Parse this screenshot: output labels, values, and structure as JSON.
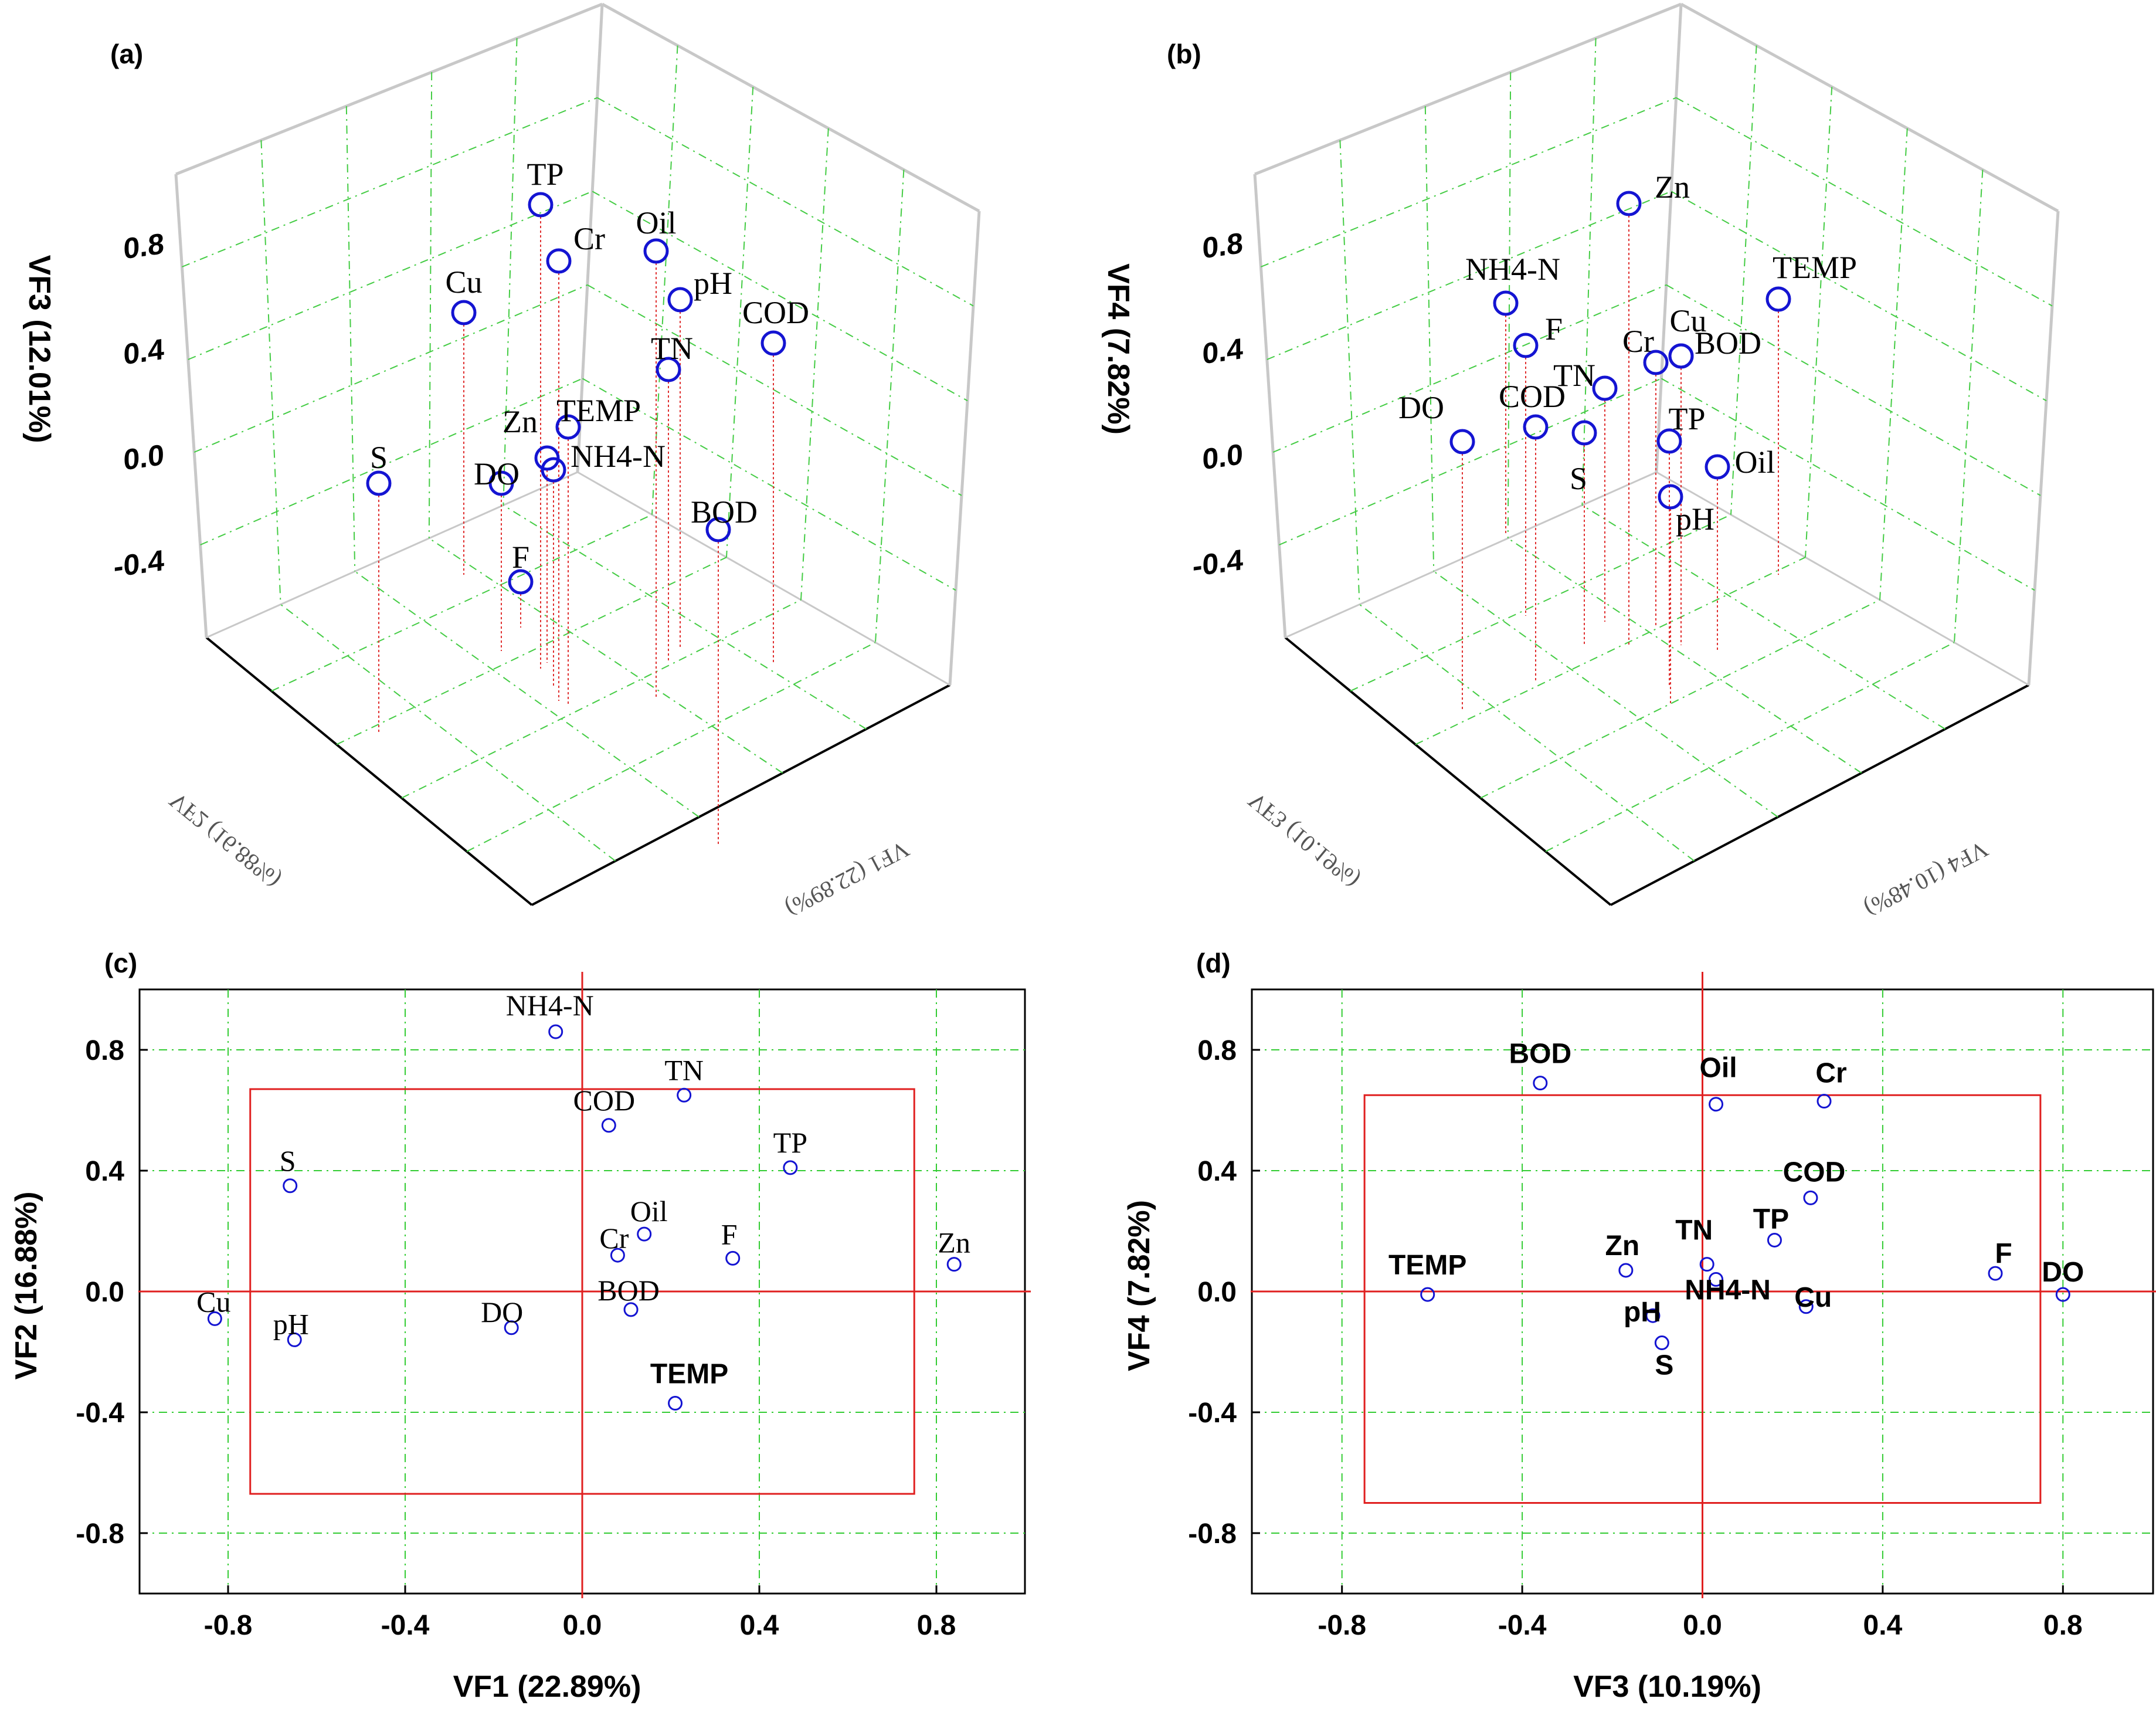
{
  "chart_data": [
    {
      "panel_label": "(a)",
      "type": "scatter3d",
      "z_axis_label": "VF3 (12.01%)",
      "z_ticks": [
        "0.8",
        "0.4",
        "0.0",
        "-0.4"
      ],
      "floor_label_left": "VF2 (16.88%)",
      "floor_label_right": "VF1 (22.89%)",
      "point_color": "#1414d2",
      "stem_color": "#e03030",
      "points": [
        {
          "label": "TP",
          "z": 0.93
        },
        {
          "label": "Cr",
          "z": 0.68
        },
        {
          "label": "Oil",
          "z": 0.75
        },
        {
          "label": "pH",
          "z": 0.56
        },
        {
          "label": "Cu",
          "z": 0.49
        },
        {
          "label": "COD",
          "z": 0.36
        },
        {
          "label": "TN",
          "z": 0.2
        },
        {
          "label": "TEMP",
          "z": 0.01
        },
        {
          "label": "Zn",
          "z": -0.09
        },
        {
          "label": "NH4-N",
          "z": -0.14
        },
        {
          "label": "DO",
          "z": -0.2
        },
        {
          "label": "S",
          "z": -0.19
        },
        {
          "label": "BOD",
          "z": -0.5
        },
        {
          "label": "F",
          "z": -0.76
        }
      ]
    },
    {
      "panel_label": "(b)",
      "type": "scatter3d",
      "z_axis_label": "VF4 (7.82%)",
      "z_ticks": [
        "0.8",
        "0.4",
        "0.0",
        "-0.4"
      ],
      "floor_label_left": "VF3 (10.19%)",
      "floor_label_right": "VF4 (10.48%)",
      "point_color": "#1414d2",
      "stem_color": "#e03030",
      "points": [
        {
          "label": "Zn",
          "z": 0.91
        },
        {
          "label": "NH4-N",
          "z": 0.4
        },
        {
          "label": "TEMP",
          "z": 0.44
        },
        {
          "label": "F",
          "z": 0.21
        },
        {
          "label": "Cu",
          "z": 0.2
        },
        {
          "label": "Cr",
          "z": 0.17
        },
        {
          "label": "BOD",
          "z": 0.2
        },
        {
          "label": "TN",
          "z": 0.0
        },
        {
          "label": "TP",
          "z": -0.22
        },
        {
          "label": "DO",
          "z": -0.2
        },
        {
          "label": "COD",
          "z": -0.15
        },
        {
          "label": "S",
          "z": -0.16
        },
        {
          "label": "Oil",
          "z": -0.3
        },
        {
          "label": "pH",
          "z": -0.41
        }
      ]
    },
    {
      "panel_label": "(c)",
      "type": "scatter",
      "xlabel": "VF1 (22.89%)",
      "ylabel": "VF2 (16.88%)",
      "xlim": [
        -1.0,
        1.0
      ],
      "ylim": [
        -1.0,
        1.0
      ],
      "x_ticks": [
        -0.8,
        -0.4,
        0.0,
        0.4,
        0.8
      ],
      "y_ticks": [
        -0.8,
        -0.4,
        0.0,
        0.4,
        0.8
      ],
      "x_tick_labels": [
        "-0.8",
        "-0.4",
        "0.0",
        "0.4",
        "0.8"
      ],
      "y_tick_labels": [
        "-0.8",
        "-0.4",
        "0.0",
        "0.4",
        "0.8"
      ],
      "grid": true,
      "box": {
        "x": [
          -0.75,
          0.75
        ],
        "y": [
          -0.67,
          0.67
        ]
      },
      "point_color": "#1414d2",
      "line_color": "#e02020",
      "points": [
        {
          "label": "NH4-N",
          "x": -0.06,
          "y": 0.86
        },
        {
          "label": "TN",
          "x": 0.23,
          "y": 0.65
        },
        {
          "label": "COD",
          "x": 0.06,
          "y": 0.55
        },
        {
          "label": "TP",
          "x": 0.47,
          "y": 0.41
        },
        {
          "label": "S",
          "x": -0.66,
          "y": 0.35
        },
        {
          "label": "Oil",
          "x": 0.14,
          "y": 0.19
        },
        {
          "label": "Cr",
          "x": 0.08,
          "y": 0.12
        },
        {
          "label": "F",
          "x": 0.34,
          "y": 0.11
        },
        {
          "label": "Zn",
          "x": 0.84,
          "y": 0.09
        },
        {
          "label": "Cu",
          "x": -0.83,
          "y": -0.09
        },
        {
          "label": "pH",
          "x": -0.65,
          "y": -0.16
        },
        {
          "label": "DO",
          "x": -0.16,
          "y": -0.12
        },
        {
          "label": "BOD",
          "x": 0.11,
          "y": -0.06
        },
        {
          "label": "TEMP",
          "x": 0.21,
          "y": -0.37
        }
      ]
    },
    {
      "panel_label": "(d)",
      "type": "scatter",
      "xlabel": "VF3 (10.19%)",
      "ylabel": "VF4 (7.82%)",
      "xlim": [
        -1.0,
        1.0
      ],
      "ylim": [
        -1.0,
        1.0
      ],
      "x_ticks": [
        -0.8,
        -0.4,
        0.0,
        0.4,
        0.8
      ],
      "y_ticks": [
        -0.8,
        -0.4,
        0.0,
        0.4,
        0.8
      ],
      "x_tick_labels": [
        "-0.8",
        "-0.4",
        "0.0",
        "0.4",
        "0.8"
      ],
      "y_tick_labels": [
        "-0.8",
        "-0.4",
        "0.0",
        "0.4",
        "0.8"
      ],
      "grid": true,
      "box": {
        "x": [
          -0.75,
          0.75
        ],
        "y": [
          -0.7,
          0.65
        ]
      },
      "point_color": "#1414d2",
      "line_color": "#e02020",
      "points": [
        {
          "label": "BOD",
          "x": -0.36,
          "y": 0.69
        },
        {
          "label": "Oil",
          "x": 0.03,
          "y": 0.62
        },
        {
          "label": "Cr",
          "x": 0.27,
          "y": 0.63
        },
        {
          "label": "COD",
          "x": 0.24,
          "y": 0.31
        },
        {
          "label": "TP",
          "x": 0.16,
          "y": 0.17
        },
        {
          "label": "TN",
          "x": 0.01,
          "y": 0.09
        },
        {
          "label": "Zn",
          "x": -0.17,
          "y": 0.07
        },
        {
          "label": "TEMP",
          "x": -0.61,
          "y": -0.01
        },
        {
          "label": "F",
          "x": 0.65,
          "y": 0.06
        },
        {
          "label": "DO",
          "x": 0.8,
          "y": -0.01
        },
        {
          "label": "pH",
          "x": -0.11,
          "y": -0.08
        },
        {
          "label": "NH4-N",
          "x": 0.03,
          "y": 0.04
        },
        {
          "label": "Cu",
          "x": 0.23,
          "y": -0.05
        },
        {
          "label": "S",
          "x": -0.09,
          "y": -0.17
        }
      ]
    }
  ]
}
